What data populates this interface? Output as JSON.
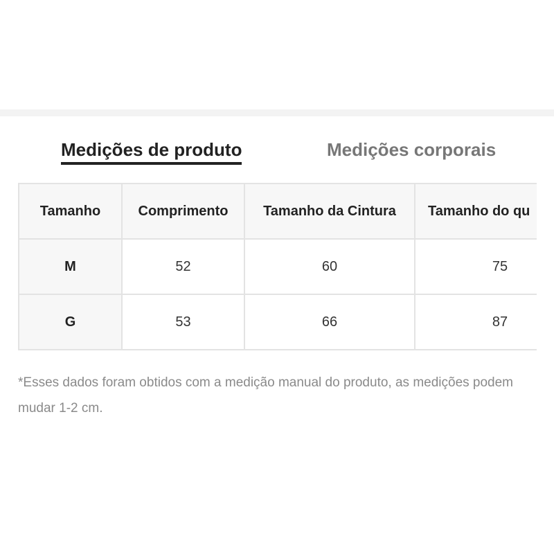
{
  "tabs": [
    {
      "label": "Medições de produto",
      "active": true
    },
    {
      "label": "Medições corporais",
      "active": false
    }
  ],
  "table": {
    "headers": [
      "Tamanho",
      "Comprimento",
      "Tamanho da Cintura",
      "Tamanho do qu"
    ],
    "rows": [
      [
        "M",
        52,
        60,
        75
      ],
      [
        "G",
        53,
        66,
        87
      ]
    ]
  },
  "note": "*Esses dados foram obtidos com a medição manual do produto, as medições podem mudar 1-2 cm."
}
